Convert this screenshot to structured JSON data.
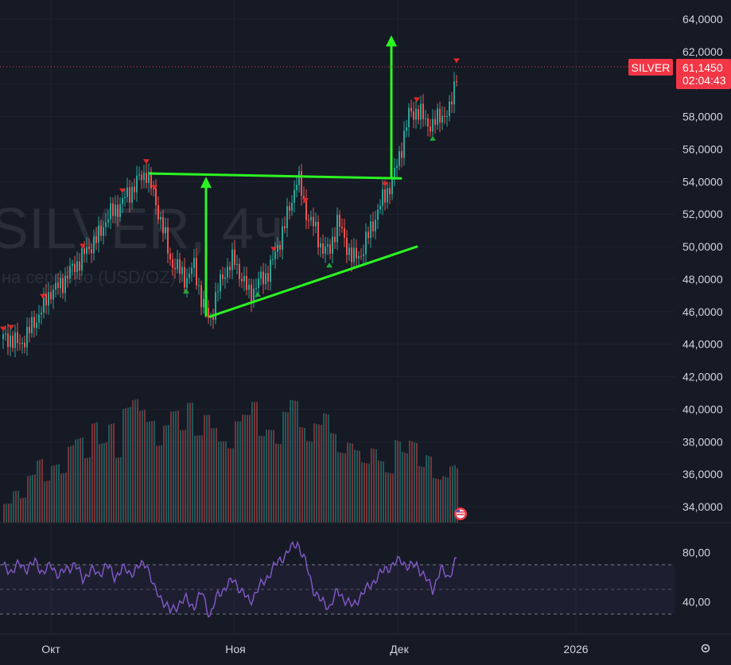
{
  "watermark": {
    "symbol": "SILVER, 4ч",
    "description": "на серебро (USD/OZ)"
  },
  "price_tag": {
    "symbol": "SILVER",
    "price": "61,1450",
    "countdown": "02:04:43"
  },
  "colors": {
    "background": "#161a25",
    "up": "#26a69a",
    "down": "#ef5350",
    "tag": "#f23645",
    "rsi": "#7e57c2",
    "drawing": "#2bf521"
  },
  "flag_icon": "us-flag-icon",
  "settings_icon": "gear-icon",
  "chart_data": [
    {
      "type": "candlestick",
      "symbol": "SILVER",
      "timeframe": "4ч",
      "price_axis": {
        "ylim": [
          33.0,
          65.0
        ],
        "ticks": [
          "34,0000",
          "36,0000",
          "38,0000",
          "40,0000",
          "42,0000",
          "44,0000",
          "46,0000",
          "48,0000",
          "50,0000",
          "52,0000",
          "54,0000",
          "56,0000",
          "58,0000",
          "60,0000",
          "62,0000",
          "64,0000"
        ]
      },
      "time_axis": {
        "labels": [
          "Окт",
          "Ноя",
          "Дек",
          "2026"
        ]
      },
      "last_price": 61.145,
      "series": [
        {
          "name": "close",
          "x": [
            0,
            10,
            20,
            30,
            40,
            50,
            60,
            70,
            80,
            90,
            100,
            110,
            120,
            130,
            140,
            150,
            160,
            170,
            180,
            190,
            200,
            210,
            220,
            230,
            240,
            250,
            260,
            270,
            280,
            290,
            300,
            310,
            320,
            330,
            340,
            350,
            360,
            370,
            380,
            390,
            400,
            410,
            420,
            430,
            440,
            450,
            460,
            470,
            480,
            490,
            500,
            510,
            520,
            530,
            540,
            550,
            560,
            570
          ],
          "values": [
            44.3,
            44.4,
            43.9,
            44.6,
            45.4,
            46.3,
            47.3,
            47.5,
            48.2,
            48.8,
            49.4,
            50.1,
            50.6,
            51.8,
            52.2,
            52.8,
            53.4,
            54.1,
            54.6,
            53.0,
            51.3,
            49.2,
            48.6,
            48.0,
            48.8,
            46.6,
            45.4,
            47.4,
            48.6,
            49.2,
            48.1,
            47.0,
            47.8,
            48.2,
            49.2,
            50.8,
            52.3,
            54.4,
            52.2,
            51.3,
            50.0,
            49.6,
            51.6,
            50.3,
            49.2,
            49.6,
            50.8,
            52.1,
            53.2,
            54.1,
            56.0,
            58.1,
            58.4,
            57.8,
            57.4,
            58.2,
            58.0,
            60.8
          ]
        }
      ],
      "signals_sell": [
        0,
        10,
        50,
        100,
        150,
        180,
        190,
        340,
        380,
        480,
        520,
        570
      ],
      "signals_buy": [
        230,
        320,
        410,
        540
      ],
      "annotations": {
        "pattern": "triangle",
        "lines": [
          {
            "from": [
              185,
              54.5
            ],
            "to": [
              500,
              54.2
            ]
          },
          {
            "from": [
              260,
              45.7
            ],
            "to": [
              520,
              50.0
            ]
          }
        ],
        "arrows": [
          {
            "from": [
              255,
              45.7
            ],
            "to": [
              255,
              54.3
            ]
          },
          {
            "from": [
              488,
              54.2
            ],
            "to": [
              488,
              63.0
            ]
          }
        ]
      }
    },
    {
      "type": "bar",
      "name": "volume",
      "values": [
        0.25,
        0.4,
        0.3,
        0.55,
        0.7,
        0.45,
        0.6,
        0.5,
        0.75,
        0.8,
        0.6,
        0.9,
        0.7,
        0.85,
        0.55,
        0.95,
        1.0,
        0.9,
        0.8,
        0.6,
        0.75,
        0.85,
        0.7,
        0.9,
        0.65,
        0.8,
        0.7,
        0.6,
        0.55,
        0.75,
        0.8,
        0.9,
        0.65,
        0.7,
        0.6,
        0.85,
        0.95,
        0.75,
        0.65,
        0.8,
        0.9,
        0.75,
        0.6,
        0.7,
        0.65,
        0.55,
        0.7,
        0.6,
        0.5,
        0.85,
        0.75,
        0.9,
        0.65,
        0.8,
        0.55,
        0.6,
        0.75,
        0.7
      ]
    },
    {
      "type": "line",
      "name": "RSI",
      "ylim": [
        20,
        95
      ],
      "ticks": [
        "40,00",
        "80,00"
      ],
      "band": [
        30,
        70
      ],
      "x": [
        0,
        10,
        20,
        30,
        40,
        50,
        60,
        70,
        80,
        90,
        100,
        110,
        120,
        130,
        140,
        150,
        160,
        170,
        180,
        190,
        200,
        210,
        220,
        230,
        240,
        250,
        260,
        270,
        280,
        290,
        300,
        310,
        320,
        330,
        340,
        350,
        360,
        370,
        380,
        390,
        400,
        410,
        420,
        430,
        440,
        450,
        460,
        470,
        480,
        490,
        500,
        510,
        520,
        530,
        540,
        550,
        560,
        570
      ],
      "values": [
        68,
        65,
        70,
        67,
        72,
        64,
        69,
        62,
        66,
        71,
        58,
        66,
        62,
        70,
        60,
        67,
        63,
        68,
        72,
        50,
        42,
        32,
        38,
        42,
        36,
        48,
        28,
        46,
        52,
        58,
        48,
        40,
        50,
        58,
        68,
        75,
        82,
        88,
        72,
        50,
        40,
        36,
        48,
        42,
        36,
        46,
        52,
        60,
        66,
        70,
        74,
        68,
        70,
        60,
        50,
        66,
        60,
        75
      ]
    }
  ]
}
